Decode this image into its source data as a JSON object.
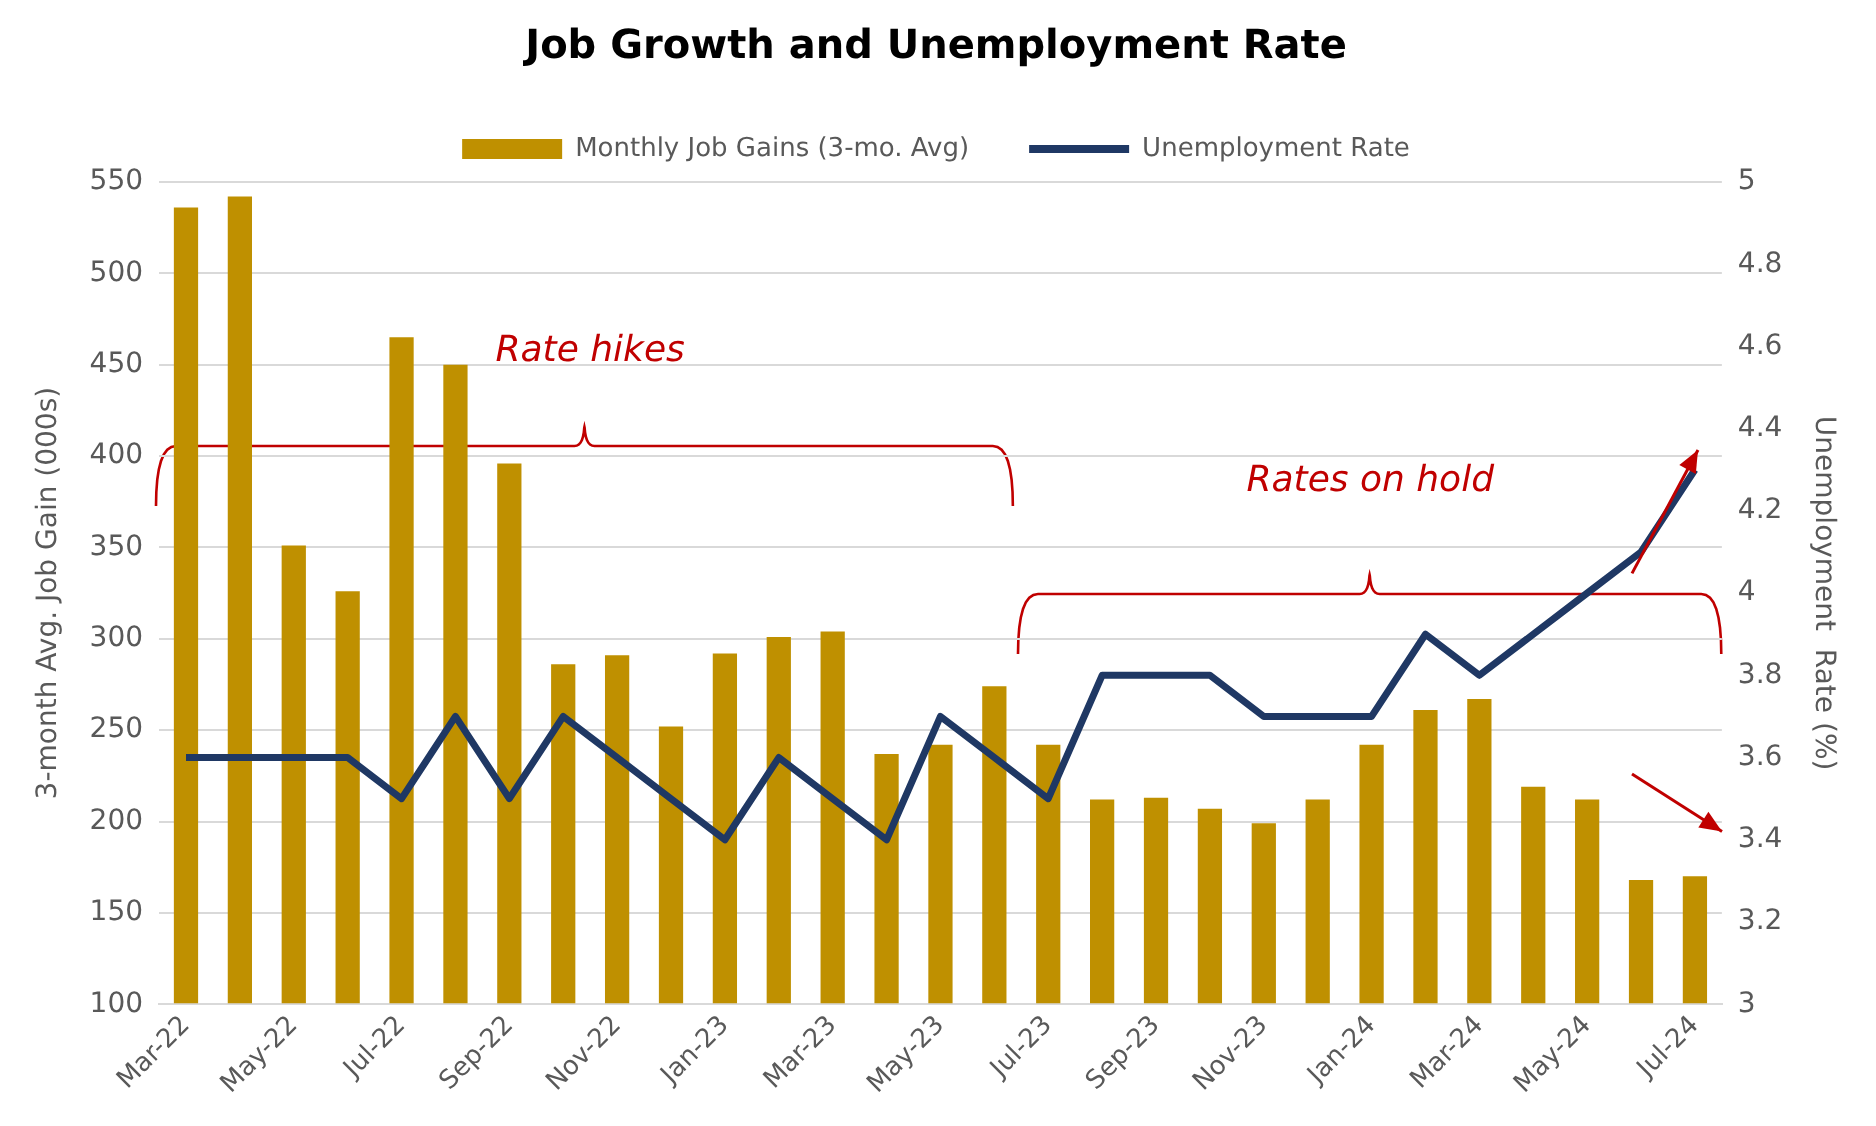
{
  "chart_data": {
    "type": "bar",
    "title": "Job Growth and Unemployment Rate",
    "categories": [
      "Mar-22",
      null,
      "May-22",
      null,
      "Jul-22",
      null,
      "Sep-22",
      null,
      "Nov-22",
      null,
      "Jan-23",
      null,
      "Mar-23",
      null,
      "May-23",
      null,
      "Jul-23",
      null,
      "Sep-23",
      null,
      "Nov-23",
      null,
      "Jan-24",
      null,
      "Mar-24",
      null,
      "May-24",
      null,
      "Jul-24"
    ],
    "series": [
      {
        "name": "Monthly Job Gains (3-mo. Avg)",
        "color": "#bf9000",
        "values": [
          536,
          542,
          351,
          326,
          465,
          450,
          396,
          286,
          291,
          252,
          292,
          301,
          304,
          237,
          242,
          274,
          242,
          212,
          213,
          207,
          199,
          212,
          242,
          261,
          267,
          219,
          212,
          168,
          170
        ]
      },
      {
        "name": "Unemployment Rate",
        "type": "line",
        "axis": "y2",
        "color": "#1f3864",
        "values": [
          3.6,
          3.6,
          3.6,
          3.6,
          3.5,
          3.7,
          3.5,
          3.7,
          3.6,
          3.5,
          3.4,
          3.6,
          3.5,
          3.4,
          3.7,
          3.6,
          3.5,
          3.8,
          3.8,
          3.8,
          3.7,
          3.7,
          3.7,
          3.9,
          3.8,
          3.9,
          4.0,
          4.1,
          4.3
        ]
      }
    ],
    "ylabel": "3-month Avg. Job Gain (000s)",
    "y2label": "Unemployment  Rate (%)",
    "ylim": [
      100,
      550
    ],
    "yticks": [
      100,
      150,
      200,
      250,
      300,
      350,
      400,
      450,
      500,
      550
    ],
    "y2lim": [
      3,
      5
    ],
    "y2ticks": [
      3,
      3.2,
      3.4,
      3.6,
      3.8,
      4,
      4.2,
      4.4,
      4.6,
      4.8,
      5
    ],
    "annotations": [
      "Rate hikes",
      "Rates on hold"
    ],
    "grid": "y",
    "legend": "top",
    "marker": "none",
    "line_style": "solid"
  }
}
